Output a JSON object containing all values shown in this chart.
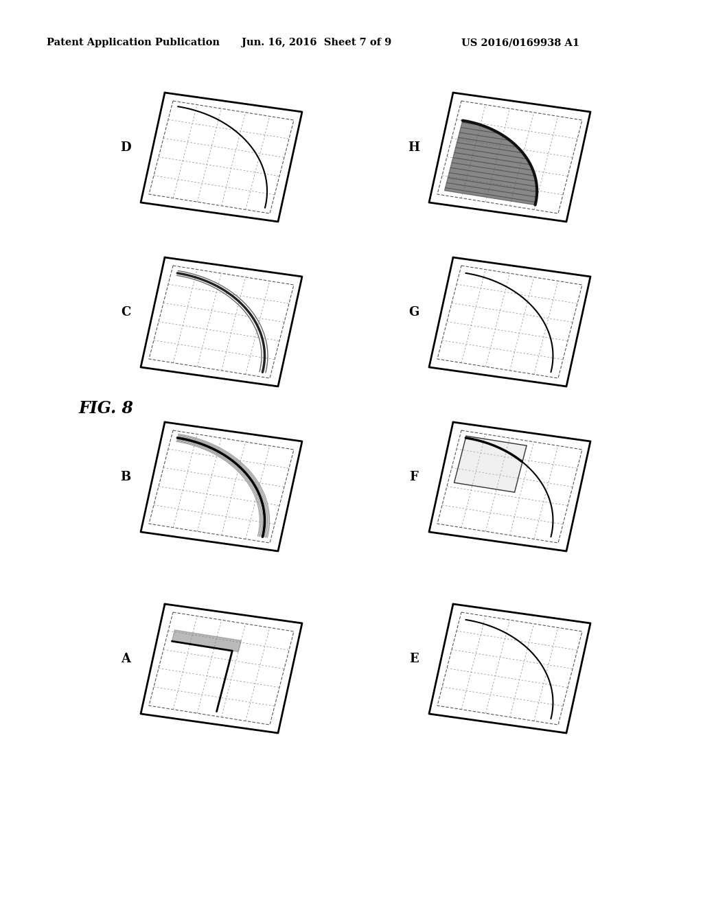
{
  "header_left": "Patent Application Publication",
  "header_center": "Jun. 16, 2016  Sheet 7 of 9",
  "header_right": "US 2016/0169938 A1",
  "fig_label": "FIG. 8",
  "background_color": "#ffffff",
  "panel_border_color": "#000000",
  "grid_color": "#aaaaaa",
  "line_color": "#000000",
  "panels": [
    {
      "label": "D",
      "col": 0,
      "row": 0
    },
    {
      "label": "H",
      "col": 1,
      "row": 0
    },
    {
      "label": "C",
      "col": 0,
      "row": 1
    },
    {
      "label": "G",
      "col": 1,
      "row": 1
    },
    {
      "label": "B",
      "col": 0,
      "row": 2
    },
    {
      "label": "F",
      "col": 1,
      "row": 2
    },
    {
      "label": "A",
      "col": 0,
      "row": 3
    },
    {
      "label": "E",
      "col": 1,
      "row": 3
    }
  ]
}
